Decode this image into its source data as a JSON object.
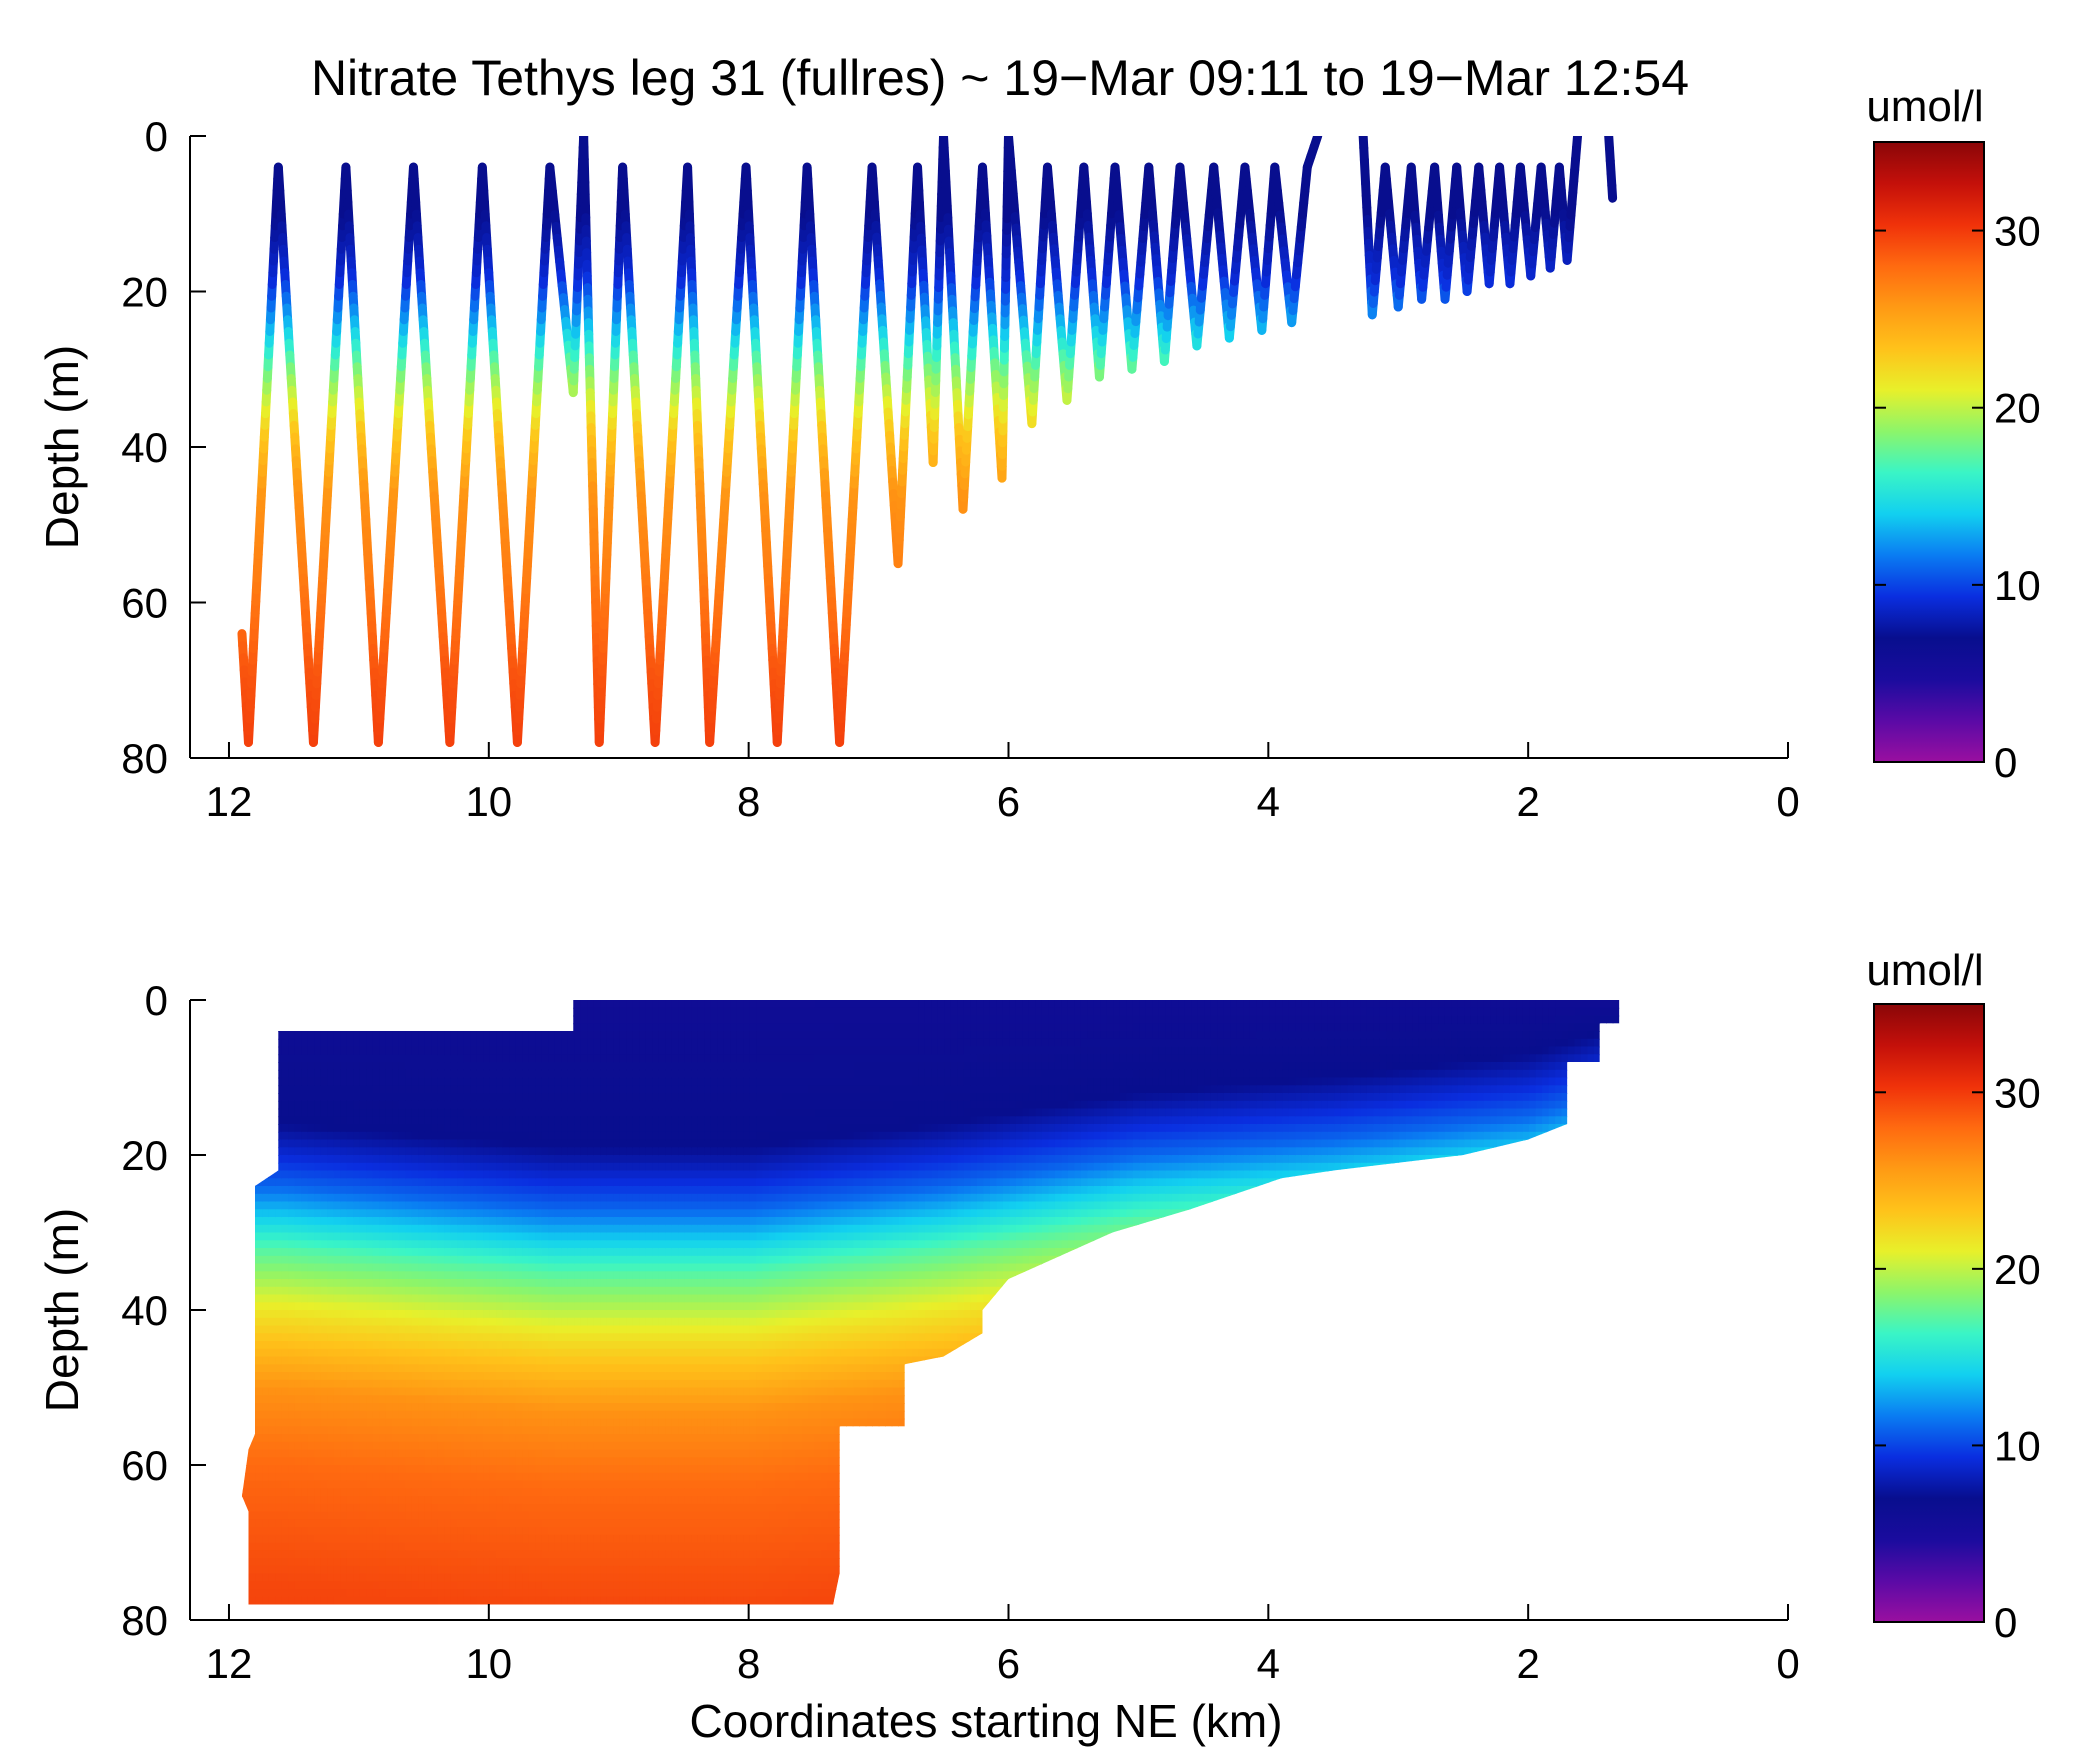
{
  "figure": {
    "title": "Nitrate Tethys leg 31 (fullres) ~ 19−Mar 09:11 to 19−Mar 12:54",
    "xlabel": "Coordinates starting NE (km)"
  },
  "colorscale": [
    "#9a0fa0",
    "#5a0aa6",
    "#1a0c9e",
    "#080e8e",
    "#0a2ee0",
    "#0a7cf2",
    "#12d0f0",
    "#3af5c6",
    "#8cf56a",
    "#e8f02a",
    "#ffc21a",
    "#ff9a14",
    "#ff6a10",
    "#f0320a",
    "#c4100a",
    "#8a0608"
  ],
  "chart_data": [
    {
      "type": "scatter",
      "panel": "top",
      "description_of_marks": "yo-yo vehicle profiles colored by nitrate",
      "ylabel": "Depth (m)",
      "ylim": [
        80,
        0
      ],
      "xlim": [
        12.3,
        0
      ],
      "xticks": [
        "12",
        "10",
        "8",
        "6",
        "4",
        "2",
        "0"
      ],
      "yticks": [
        "0",
        "20",
        "40",
        "60",
        "80"
      ],
      "colorbar": {
        "label": "umol/l",
        "range": [
          0,
          35
        ],
        "ticks": [
          "0",
          "10",
          "20",
          "30"
        ]
      },
      "profile_turning_points": [
        [
          11.9,
          64
        ],
        [
          11.85,
          78
        ],
        [
          11.62,
          4
        ],
        [
          11.35,
          78
        ],
        [
          11.1,
          4
        ],
        [
          10.85,
          78
        ],
        [
          10.58,
          4
        ],
        [
          10.3,
          78
        ],
        [
          10.05,
          4
        ],
        [
          9.78,
          78
        ],
        [
          9.53,
          4
        ],
        [
          9.35,
          33
        ],
        [
          9.27,
          0
        ],
        [
          9.15,
          78
        ],
        [
          8.97,
          4
        ],
        [
          8.72,
          78
        ],
        [
          8.47,
          4
        ],
        [
          8.3,
          78
        ],
        [
          8.02,
          4
        ],
        [
          7.78,
          78
        ],
        [
          7.55,
          4
        ],
        [
          7.3,
          78
        ],
        [
          7.05,
          4
        ],
        [
          6.85,
          55
        ],
        [
          6.7,
          4
        ],
        [
          6.58,
          42
        ],
        [
          6.5,
          0
        ],
        [
          6.35,
          48
        ],
        [
          6.2,
          4
        ],
        [
          6.05,
          44
        ],
        [
          6.0,
          0
        ],
        [
          5.82,
          37
        ],
        [
          5.7,
          4
        ],
        [
          5.55,
          34
        ],
        [
          5.42,
          4
        ],
        [
          5.3,
          31
        ],
        [
          5.18,
          4
        ],
        [
          5.05,
          30
        ],
        [
          4.92,
          4
        ],
        [
          4.8,
          29
        ],
        [
          4.68,
          4
        ],
        [
          4.55,
          27
        ],
        [
          4.42,
          4
        ],
        [
          4.3,
          26
        ],
        [
          4.18,
          4
        ],
        [
          4.05,
          25
        ],
        [
          3.95,
          4
        ],
        [
          3.82,
          24
        ],
        [
          3.7,
          4
        ],
        [
          3.62,
          0
        ],
        null,
        [
          3.27,
          0
        ],
        [
          3.2,
          23
        ],
        [
          3.1,
          4
        ],
        [
          3.0,
          22
        ],
        [
          2.9,
          4
        ],
        [
          2.82,
          21
        ],
        [
          2.72,
          4
        ],
        [
          2.64,
          21
        ],
        [
          2.55,
          4
        ],
        [
          2.47,
          20
        ],
        [
          2.38,
          4
        ],
        [
          2.3,
          19
        ],
        [
          2.22,
          4
        ],
        [
          2.14,
          19
        ],
        [
          2.06,
          4
        ],
        [
          1.98,
          18
        ],
        [
          1.9,
          4
        ],
        [
          1.83,
          17
        ],
        [
          1.76,
          4
        ],
        [
          1.7,
          16
        ],
        [
          1.62,
          0
        ],
        null,
        [
          1.38,
          0
        ],
        [
          1.35,
          8
        ]
      ],
      "nitrate_vs_depth": [
        [
          0,
          7
        ],
        [
          10,
          7
        ],
        [
          18,
          9
        ],
        [
          24,
          13
        ],
        [
          30,
          18
        ],
        [
          38,
          23
        ],
        [
          46,
          26
        ],
        [
          56,
          27
        ],
        [
          70,
          29
        ],
        [
          80,
          30
        ]
      ]
    },
    {
      "type": "heatmap",
      "panel": "bottom",
      "description_of_marks": "interpolated nitrate section",
      "ylabel": "Depth (m)",
      "ylim": [
        80,
        0
      ],
      "xlim": [
        12.3,
        0
      ],
      "xticks": [
        "12",
        "10",
        "8",
        "6",
        "4",
        "2",
        "0"
      ],
      "yticks": [
        "0",
        "20",
        "40",
        "60",
        "80"
      ],
      "colorbar": {
        "label": "umol/l",
        "range": [
          0,
          35
        ],
        "ticks": [
          "0",
          "10",
          "20",
          "30"
        ]
      },
      "nitracline_depth_km": [
        [
          11.6,
          24
        ],
        [
          9.5,
          27
        ],
        [
          8.0,
          27
        ],
        [
          6.5,
          24
        ],
        [
          5.0,
          20
        ],
        [
          3.5,
          18
        ],
        [
          2.0,
          15
        ],
        [
          1.4,
          12
        ]
      ],
      "domain_outline": [
        [
          11.62,
          4
        ],
        [
          9.35,
          4
        ],
        [
          9.35,
          0
        ],
        [
          1.3,
          0
        ],
        [
          1.3,
          3
        ],
        [
          1.45,
          3
        ],
        [
          1.45,
          8
        ],
        [
          1.7,
          8
        ],
        [
          1.7,
          16
        ],
        [
          2.0,
          18
        ],
        [
          2.5,
          20
        ],
        [
          3.5,
          22
        ],
        [
          3.9,
          23
        ],
        [
          4.6,
          27
        ],
        [
          5.2,
          30
        ],
        [
          5.6,
          33
        ],
        [
          6.0,
          36
        ],
        [
          6.2,
          40
        ],
        [
          6.2,
          43
        ],
        [
          6.5,
          46
        ],
        [
          6.8,
          47
        ],
        [
          6.8,
          55
        ],
        [
          7.3,
          55
        ],
        [
          7.3,
          74
        ],
        [
          7.35,
          78
        ],
        [
          11.85,
          78
        ],
        [
          11.85,
          66
        ],
        [
          11.9,
          64
        ],
        [
          11.85,
          58
        ],
        [
          11.8,
          56
        ],
        [
          11.8,
          24
        ],
        [
          11.62,
          22
        ]
      ]
    }
  ]
}
